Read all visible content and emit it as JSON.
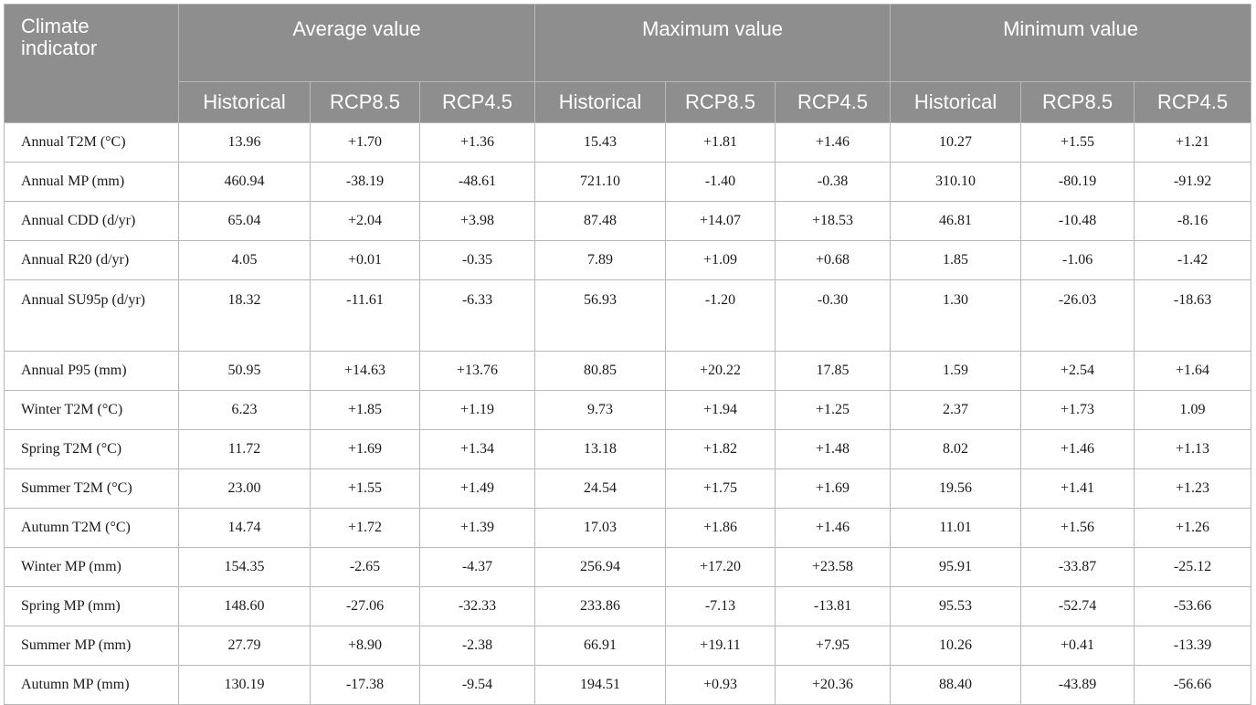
{
  "table": {
    "corner_header": "Climate indicator",
    "groups": [
      "Average value",
      "Maximum value",
      "Minimum value"
    ],
    "subheaders": [
      "Historical",
      "RCP8.5",
      "RCP4.5",
      "Historical",
      "RCP8.5",
      "RCP4.5",
      "Historical",
      "RCP8.5",
      "RCP4.5"
    ],
    "rows": [
      {
        "label": "Annual T2M (°C)",
        "values": [
          "13.96",
          "+1.70",
          "+1.36",
          "15.43",
          "+1.81",
          "+1.46",
          "10.27",
          "+1.55",
          "+1.21"
        ]
      },
      {
        "label": "Annual MP (mm)",
        "values": [
          "460.94",
          "-38.19",
          "-48.61",
          "721.10",
          "-1.40",
          "-0.38",
          "310.10",
          "-80.19",
          "-91.92"
        ]
      },
      {
        "label": "Annual CDD (d/yr)",
        "values": [
          "65.04",
          "+2.04",
          "+3.98",
          "87.48",
          "+14.07",
          "+18.53",
          "46.81",
          "-10.48",
          "-8.16"
        ]
      },
      {
        "label": "Annual R20 (d/yr)",
        "values": [
          "4.05",
          "+0.01",
          "-0.35",
          "7.89",
          "+1.09",
          "+0.68",
          "1.85",
          "-1.06",
          "-1.42"
        ]
      },
      {
        "label": "Annual SU95p (d/yr)",
        "values": [
          "18.32",
          "-11.61",
          "-6.33",
          "56.93",
          "-1.20",
          "-0.30",
          "1.30",
          "-26.03",
          "-18.63"
        ]
      },
      {
        "label": "Annual P95 (mm)",
        "values": [
          "50.95",
          "+14.63",
          "+13.76",
          "80.85",
          "+20.22",
          "17.85",
          "1.59",
          "+2.54",
          "+1.64"
        ]
      },
      {
        "label": "Winter T2M (°C)",
        "values": [
          "6.23",
          "+1.85",
          "+1.19",
          "9.73",
          "+1.94",
          "+1.25",
          "2.37",
          "+1.73",
          "1.09"
        ]
      },
      {
        "label": "Spring T2M (°C)",
        "values": [
          "11.72",
          "+1.69",
          "+1.34",
          "13.18",
          "+1.82",
          "+1.48",
          "8.02",
          "+1.46",
          "+1.13"
        ]
      },
      {
        "label": "Summer T2M (°C)",
        "values": [
          "23.00",
          "+1.55",
          "+1.49",
          "24.54",
          "+1.75",
          "+1.69",
          "19.56",
          "+1.41",
          "+1.23"
        ]
      },
      {
        "label": "Autumn T2M (°C)",
        "values": [
          "14.74",
          "+1.72",
          "+1.39",
          "17.03",
          "+1.86",
          "+1.46",
          "11.01",
          "+1.56",
          "+1.26"
        ]
      },
      {
        "label": "Winter MP (mm)",
        "values": [
          "154.35",
          "-2.65",
          "-4.37",
          "256.94",
          "+17.20",
          "+23.58",
          "95.91",
          "-33.87",
          "-25.12"
        ]
      },
      {
        "label": "Spring MP (mm)",
        "values": [
          "148.60",
          "-27.06",
          "-32.33",
          "233.86",
          "-7.13",
          "-13.81",
          "95.53",
          "-52.74",
          "-53.66"
        ]
      },
      {
        "label": "Summer MP (mm)",
        "values": [
          "27.79",
          "+8.90",
          "-2.38",
          "66.91",
          "+19.11",
          "+7.95",
          "10.26",
          "+0.41",
          "-13.39"
        ]
      },
      {
        "label": "Autumn MP (mm)",
        "values": [
          "130.19",
          "-17.38",
          "-9.54",
          "194.51",
          "+0.93",
          "+20.36",
          "88.40",
          "-43.89",
          "-56.66"
        ]
      }
    ]
  }
}
